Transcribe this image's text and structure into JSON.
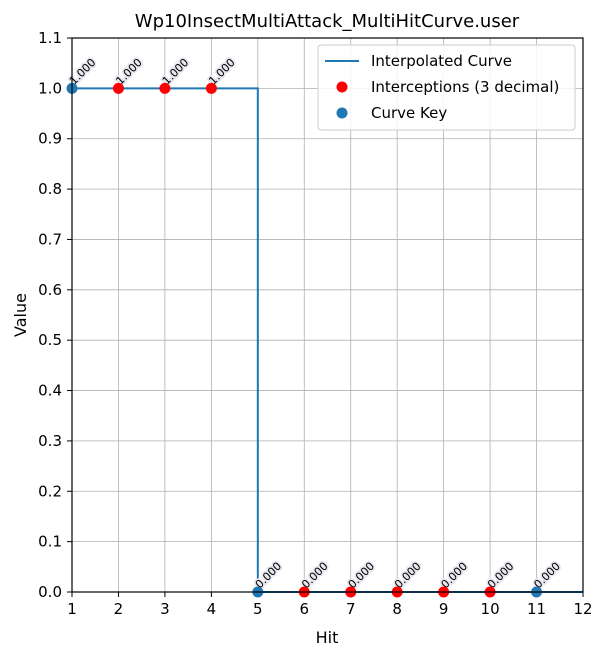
{
  "chart_data": {
    "type": "line",
    "title": "Wp10InsectMultiAttack_MultiHitCurve.user",
    "xlabel": "Hit",
    "ylabel": "Value",
    "xlim": [
      1,
      12
    ],
    "ylim": [
      0.0,
      1.1
    ],
    "x_ticks": [
      "1",
      "2",
      "3",
      "4",
      "5",
      "6",
      "7",
      "8",
      "9",
      "10",
      "11",
      "12"
    ],
    "y_ticks": [
      "0.0",
      "0.1",
      "0.2",
      "0.3",
      "0.4",
      "0.5",
      "0.6",
      "0.7",
      "0.8",
      "0.9",
      "1.0",
      "1.1"
    ],
    "grid": true,
    "legend_position": "top-right",
    "series": [
      {
        "name": "Interpolated Curve",
        "type": "line",
        "color": "#1f77b4",
        "x": [
          1,
          5,
          5,
          12
        ],
        "y": [
          1.0,
          1.0,
          0.0,
          0.0
        ]
      },
      {
        "name": "Interceptions (3 decimal)",
        "type": "scatter",
        "color": "#ff0000",
        "x": [
          2,
          3,
          4,
          6,
          7,
          8,
          9,
          10
        ],
        "y": [
          1.0,
          1.0,
          1.0,
          0.0,
          0.0,
          0.0,
          0.0,
          0.0
        ]
      },
      {
        "name": "Curve Key",
        "type": "scatter",
        "color": "#1f77b4",
        "x": [
          1,
          5,
          11
        ],
        "y": [
          1.0,
          0.0,
          0.0
        ]
      }
    ],
    "data_labels": [
      {
        "x": 1,
        "y": 1.0,
        "text": "1.000"
      },
      {
        "x": 2,
        "y": 1.0,
        "text": "1.000"
      },
      {
        "x": 3,
        "y": 1.0,
        "text": "1.000"
      },
      {
        "x": 4,
        "y": 1.0,
        "text": "1.000"
      },
      {
        "x": 5,
        "y": 0.0,
        "text": "0.000"
      },
      {
        "x": 6,
        "y": 0.0,
        "text": "0.000"
      },
      {
        "x": 7,
        "y": 0.0,
        "text": "0.000"
      },
      {
        "x": 8,
        "y": 0.0,
        "text": "0.000"
      },
      {
        "x": 9,
        "y": 0.0,
        "text": "0.000"
      },
      {
        "x": 10,
        "y": 0.0,
        "text": "0.000"
      },
      {
        "x": 11,
        "y": 0.0,
        "text": "0.000"
      }
    ]
  }
}
